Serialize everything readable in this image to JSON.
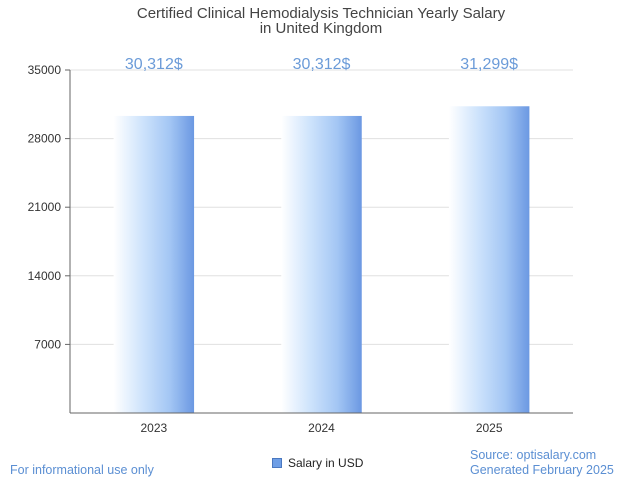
{
  "chart_data": {
    "type": "bar",
    "title": [
      "Certified Clinical Hemodialysis Technician Yearly Salary",
      "in United Kingdom"
    ],
    "categories": [
      "2023",
      "2024",
      "2025"
    ],
    "series": [
      {
        "name": "Salary in USD",
        "values": [
          30312,
          30312,
          31299
        ]
      }
    ],
    "data_labels": [
      "30,312$",
      "30,312$",
      "31,299$"
    ],
    "y_ticks": [
      7000,
      14000,
      21000,
      28000,
      35000
    ],
    "ylim": [
      0,
      35000
    ],
    "xlabel": "",
    "ylabel": "",
    "grid": true,
    "legend_position": "bottom-center"
  },
  "footer": {
    "disclaimer": "For informational use only",
    "source": "Source: optisalary.com",
    "generated": "Generated February 2025"
  },
  "colors": {
    "bar_light": "#e8f3ff",
    "bar_mid": "#a9cdf7",
    "bar_dark": "#6e9ee6",
    "label": "#6b9bd8",
    "grid": "#e0e0e0",
    "axis": "#666666"
  }
}
